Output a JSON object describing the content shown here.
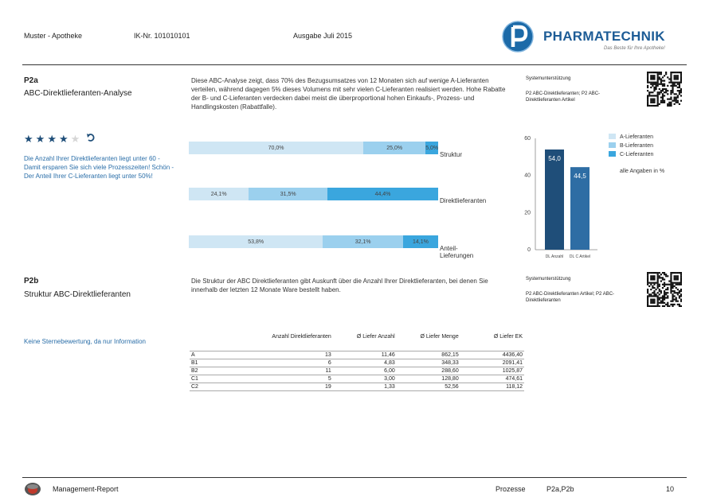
{
  "header": {
    "pharmacy": "Muster - Apotheke",
    "ik": "IK-Nr. 101010101",
    "edition": "Ausgabe Juli 2015",
    "brand": "PHARMATECHNIK",
    "slogan": "Das Beste für Ihre Apotheke!"
  },
  "p2a": {
    "code": "P2a",
    "title": "ABC-Direktlieferanten-Analyse",
    "description_lines": [
      "Diese ABC-Analyse zeigt, dass 70% des Bezugsumsatzes von 12 Monaten sich auf wenige A-Lieferanten",
      "verteilen, während dagegen 5% dieses Volumens mit sehr vielen C-Lieferanten realisiert werden. Hohe Rabatte",
      "der B- und C-Lieferanten verdecken dabei meist die überproportional hohen Einkaufs-, Prozess- und",
      "Handlingskosten (Rabattfalle)."
    ],
    "support_label": "Systemunterstützung",
    "support_lines": [
      "P2 ABC-Direktlieferanten; P2 ABC-",
      "Direktlieferanten Artikel"
    ],
    "rating": 4,
    "rating_max": 5,
    "message_lines": [
      "Die Anzahl Ihrer Direktlieferanten liegt unter 60 -",
      "Damit ersparen Sie sich viele Prozesszeiten! Schön -",
      "Der Anteil Ihrer C-Lieferanten liegt unter 50%!"
    ]
  },
  "colors": {
    "a": "#cfe6f4",
    "b": "#9bd0ee",
    "c": "#3aa6de",
    "bar_dark": "#1f4e79",
    "bar_mid": "#2e6da4",
    "text_blue": "#2a6ea8"
  },
  "chart_data": [
    {
      "type": "bar",
      "orientation": "horizontal",
      "stacked": true,
      "categories": [
        "Struktur",
        "Direktlieferanten",
        "Anteil-Lieferungen"
      ],
      "series": [
        {
          "name": "A-Lieferanten",
          "values": [
            70.0,
            24.1,
            53.8
          ],
          "labels": [
            "70,0%",
            "24,1%",
            "53,8%"
          ]
        },
        {
          "name": "B-Lieferanten",
          "values": [
            25.0,
            31.5,
            32.1
          ],
          "labels": [
            "25,0%",
            "31,5%",
            "32,1%"
          ]
        },
        {
          "name": "C-Lieferanten",
          "values": [
            5.0,
            44.4,
            14.1
          ],
          "labels": [
            "5,0%",
            "44,4%",
            "14,1%"
          ]
        }
      ]
    },
    {
      "type": "bar",
      "categories": [
        "DL Anzahl",
        "DL C Artikel"
      ],
      "values": [
        54.0,
        44.5
      ],
      "value_labels": [
        "54,0",
        "44,5"
      ],
      "ylim": [
        0,
        60
      ],
      "yticks": [
        "0",
        "20",
        "40",
        "60"
      ],
      "legend": [
        "A-Lieferanten",
        "B-Lieferanten",
        "C-Lieferanten"
      ],
      "legend_position": "top-right",
      "note": "alle Angaben in %"
    }
  ],
  "p2b": {
    "code": "P2b",
    "title": "Struktur ABC-Direktlieferanten",
    "description_lines": [
      "Die Struktur der ABC Direktlieferanten gibt Auskunft über die Anzahl Ihrer Direktlieferanten, bei denen Sie",
      "innerhalb der letzten 12 Monate Ware bestellt haben."
    ],
    "support_label": "Systemunterstützung",
    "support_lines": [
      "P2 ABC-Direktlieferanten Artikel; P2 ABC-",
      "Direktlieferanten"
    ],
    "note": "Keine Sternebewertung, da nur Information",
    "table": {
      "headers": [
        "",
        "Anzahl Direktlieferanten",
        "Ø Liefer Anzahl",
        "Ø Liefer Menge",
        "Ø Liefer EK"
      ],
      "rows": [
        [
          "A",
          "13",
          "11,46",
          "862,15",
          "4436,40"
        ],
        [
          "B1",
          "6",
          "4,83",
          "348,33",
          "2091,41"
        ],
        [
          "B2",
          "11",
          "6,00",
          "288,60",
          "1025,87"
        ],
        [
          "C1",
          "5",
          "3,00",
          "128,80",
          "474,61"
        ],
        [
          "C2",
          "19",
          "1,33",
          "52,56",
          "118,12"
        ]
      ]
    }
  },
  "footer": {
    "report": "Management-Report",
    "processes_label": "Prozesse",
    "processes": "P2a,P2b",
    "page": "10"
  }
}
